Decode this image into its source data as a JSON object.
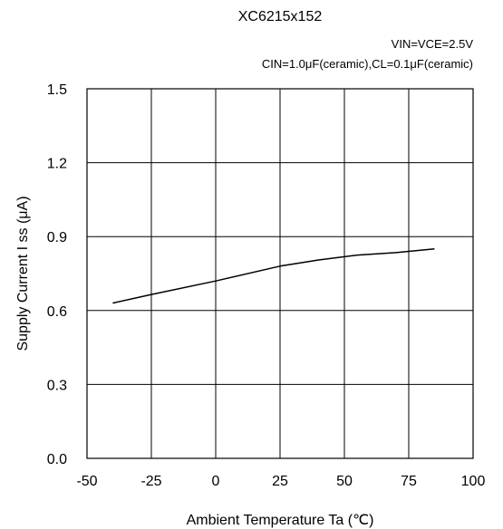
{
  "chart_data": {
    "type": "line",
    "title": "XC6215x152",
    "conditions": [
      "VIN=VCE=2.5V",
      "CIN=1.0μF(ceramic),CL=0.1μF(ceramic)"
    ],
    "xlabel": "Ambient Temperature Ta (℃)",
    "ylabel": "Supply Current  I ss (μA)",
    "xlim": [
      -50,
      100
    ],
    "ylim": [
      0.0,
      1.5
    ],
    "x_ticks": [
      -50,
      -25,
      0,
      25,
      50,
      75,
      100
    ],
    "y_ticks": [
      0.0,
      0.3,
      0.6,
      0.9,
      1.2,
      1.5
    ],
    "x_tick_labels": [
      "-50",
      "-25",
      "0",
      "25",
      "50",
      "75",
      "100"
    ],
    "y_tick_labels": [
      "0.0",
      "0.3",
      "0.6",
      "0.9",
      "1.2",
      "1.5"
    ],
    "grid": true,
    "series": [
      {
        "x": [
          -40,
          -25,
          0,
          25,
          40,
          55,
          70,
          85
        ],
        "y": [
          0.63,
          0.665,
          0.72,
          0.78,
          0.805,
          0.825,
          0.835,
          0.85
        ]
      }
    ]
  }
}
